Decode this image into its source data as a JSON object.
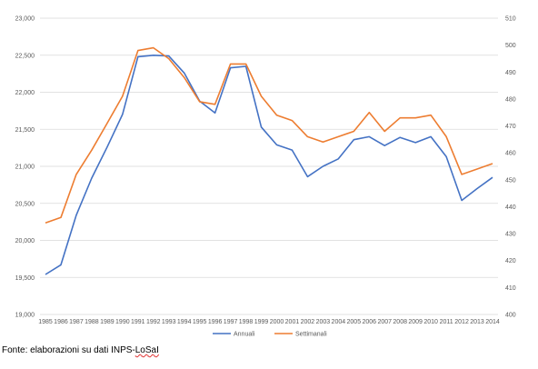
{
  "chart_data": {
    "type": "line",
    "x": [
      "1985",
      "1986",
      "1987",
      "1988",
      "1989",
      "1990",
      "1991",
      "1992",
      "1993",
      "1994",
      "1995",
      "1996",
      "1997",
      "1998",
      "1999",
      "2000",
      "2001",
      "2002",
      "2003",
      "2004",
      "2005",
      "2006",
      "2007",
      "2008",
      "2009",
      "2010",
      "2011",
      "2012",
      "2013",
      "2014"
    ],
    "series": [
      {
        "name": "Annuali",
        "axis": "left",
        "color": "#4472c4",
        "values": [
          19540,
          19670,
          20340,
          20840,
          21260,
          21700,
          22480,
          22500,
          22490,
          22260,
          21880,
          21720,
          22330,
          22350,
          21530,
          21290,
          21220,
          20860,
          21000,
          21100,
          21360,
          21400,
          21280,
          21390,
          21320,
          21400,
          21130,
          20540,
          20700,
          20850
        ]
      },
      {
        "name": "Settimanali",
        "axis": "right",
        "color": "#ed7d31",
        "values": [
          434,
          436,
          452,
          461,
          471,
          481,
          498,
          499,
          495,
          488,
          479,
          478,
          493,
          493,
          481,
          474,
          472,
          466,
          464,
          466,
          468,
          475,
          468,
          473,
          473,
          474,
          466,
          452,
          454,
          456
        ]
      }
    ],
    "y_left": {
      "lim": [
        19000,
        23000
      ],
      "ticks": [
        "19,000",
        "19,500",
        "20,000",
        "20,500",
        "21,000",
        "21,500",
        "22,000",
        "22,500",
        "23,000"
      ]
    },
    "y_right": {
      "lim": [
        400,
        510
      ],
      "ticks": [
        "400",
        "410",
        "420",
        "430",
        "440",
        "450",
        "460",
        "470",
        "480",
        "490",
        "500",
        "510"
      ]
    },
    "grid": true,
    "legend_position": "bottom",
    "title": "",
    "xlabel": "",
    "ylabel": ""
  },
  "caption": {
    "prefix": "Fonte: elaborazioni su dati INPS-",
    "underlined": "LoSaI"
  }
}
